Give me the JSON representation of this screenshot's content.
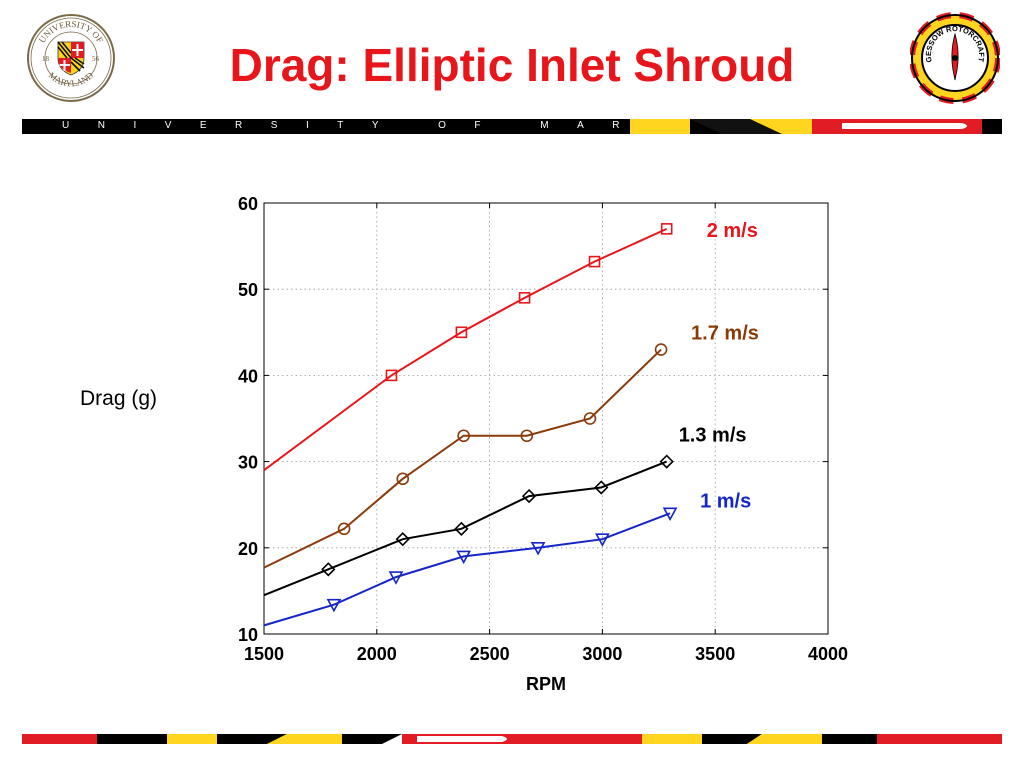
{
  "slide": {
    "title": "Drag: Elliptic Inlet Shroud",
    "banner_text": "UNIVERSITY OF MARYLAND",
    "logo_left_text": "UNIVERSITY OF MARYLAND",
    "logo_left_years": [
      "18",
      "56"
    ],
    "logo_right_text": "ALFRED GESSOW ROTORCRAFT CENTER",
    "colors": {
      "title": "#e8151b",
      "maryland_red": "#e21c24",
      "maryland_gold": "#ffd520",
      "black": "#000000"
    }
  },
  "chart_data": {
    "type": "line",
    "title": "",
    "xlabel": "RPM",
    "ylabel": "Drag (g)",
    "xlim": [
      1500,
      4000
    ],
    "ylim": [
      10,
      60
    ],
    "xticks": [
      1500,
      2000,
      2500,
      3000,
      3500,
      4000
    ],
    "yticks": [
      10,
      20,
      30,
      40,
      50,
      60
    ],
    "grid": true,
    "legend": "inline labels at line ends",
    "series": [
      {
        "name": "2 m/s",
        "color": "#e8151b",
        "marker": "square",
        "x": [
          1500,
          2065,
          2375,
          2655,
          2965,
          3285
        ],
        "y": [
          29,
          40,
          45,
          49,
          53.2,
          57
        ],
        "markers_from": 1
      },
      {
        "name": "1.7 m/s",
        "color": "#8b3a0a",
        "marker": "circle",
        "x": [
          1500,
          1855,
          2115,
          2385,
          2665,
          2945,
          3260
        ],
        "y": [
          17.7,
          22.2,
          28,
          33,
          33,
          35,
          43
        ],
        "markers_from": 1
      },
      {
        "name": "1.3 m/s",
        "color": "#000000",
        "marker": "diamond",
        "x": [
          1500,
          1785,
          2115,
          2375,
          2675,
          2995,
          3285
        ],
        "y": [
          14.5,
          17.5,
          21,
          22.2,
          26,
          27,
          30
        ],
        "markers_from": 1
      },
      {
        "name": "1 m/s",
        "color": "#1426c8",
        "marker": "triangle-down",
        "x": [
          1500,
          1810,
          2085,
          2385,
          2715,
          3000,
          3300
        ],
        "y": [
          11,
          13.4,
          16.6,
          19,
          20,
          21,
          24
        ],
        "markers_from": 1
      }
    ]
  }
}
